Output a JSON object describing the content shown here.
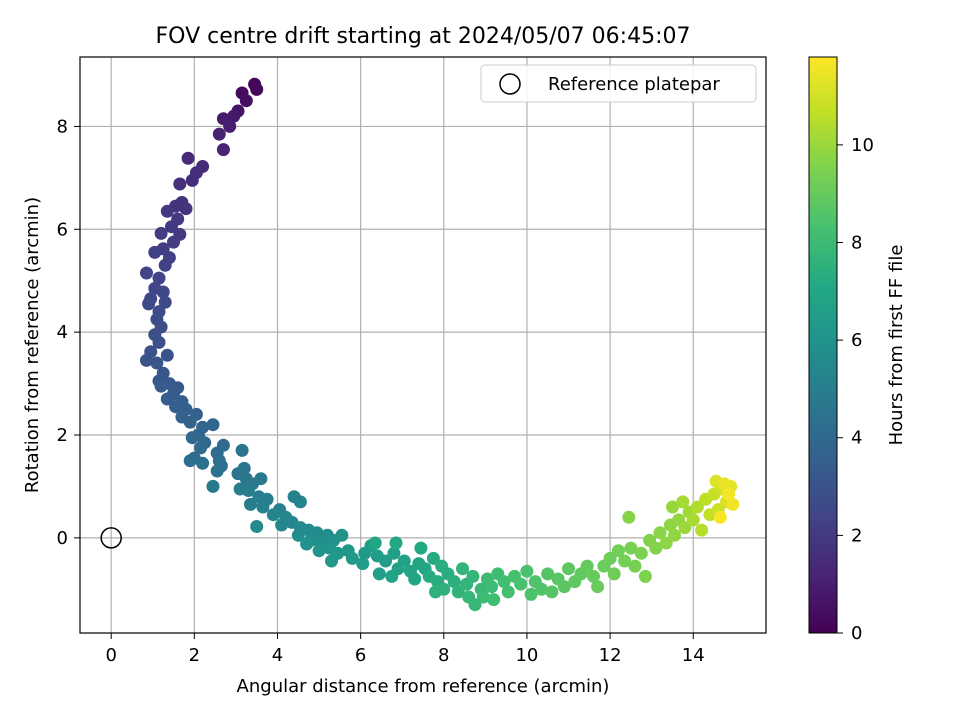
{
  "chart_data": {
    "type": "scatter",
    "title": "FOV centre drift starting at 2024/05/07 06:45:07",
    "xlabel": "Angular distance from reference (arcmin)",
    "ylabel": "Rotation from reference (arcmin)",
    "xlim": [
      -0.75,
      15.75
    ],
    "ylim": [
      -1.85,
      9.35
    ],
    "xticks": [
      0,
      2,
      4,
      6,
      8,
      10,
      12,
      14
    ],
    "yticks": [
      0,
      2,
      4,
      6,
      8
    ],
    "grid": true,
    "legend": {
      "position": "top-right",
      "entries": [
        "Reference platepar"
      ]
    },
    "reference_point": {
      "x": 0,
      "y": 0,
      "marker": "open-circle",
      "label": "Reference platepar"
    },
    "colorbar": {
      "label": "Hours from first FF file",
      "colormap": "viridis",
      "range": [
        0,
        11.8
      ],
      "ticks": [
        0,
        2,
        4,
        6,
        8,
        10
      ]
    },
    "series": [
      {
        "name": "FOV centre drift",
        "points": [
          {
            "x": 3.45,
            "y": 8.82,
            "c": 0.1
          },
          {
            "x": 3.5,
            "y": 8.72,
            "c": 0.2
          },
          {
            "x": 3.15,
            "y": 8.65,
            "c": 0.35
          },
          {
            "x": 3.25,
            "y": 8.5,
            "c": 0.5
          },
          {
            "x": 3.05,
            "y": 8.3,
            "c": 0.65
          },
          {
            "x": 2.95,
            "y": 8.2,
            "c": 0.8
          },
          {
            "x": 2.7,
            "y": 8.15,
            "c": 0.9
          },
          {
            "x": 2.85,
            "y": 8.0,
            "c": 1.0
          },
          {
            "x": 2.6,
            "y": 7.85,
            "c": 1.1
          },
          {
            "x": 2.7,
            "y": 7.55,
            "c": 1.2
          },
          {
            "x": 1.85,
            "y": 7.38,
            "c": 1.35
          },
          {
            "x": 2.2,
            "y": 7.22,
            "c": 1.45
          },
          {
            "x": 2.05,
            "y": 7.1,
            "c": 1.5
          },
          {
            "x": 1.95,
            "y": 6.95,
            "c": 1.55
          },
          {
            "x": 1.65,
            "y": 6.88,
            "c": 1.6
          },
          {
            "x": 1.7,
            "y": 6.52,
            "c": 1.7
          },
          {
            "x": 1.55,
            "y": 6.45,
            "c": 1.75
          },
          {
            "x": 1.8,
            "y": 6.4,
            "c": 1.8
          },
          {
            "x": 1.35,
            "y": 6.35,
            "c": 1.85
          },
          {
            "x": 1.6,
            "y": 6.2,
            "c": 1.9
          },
          {
            "x": 1.45,
            "y": 6.05,
            "c": 1.95
          },
          {
            "x": 1.65,
            "y": 5.9,
            "c": 2.0
          },
          {
            "x": 1.2,
            "y": 5.92,
            "c": 2.05
          },
          {
            "x": 1.5,
            "y": 5.75,
            "c": 2.1
          },
          {
            "x": 1.25,
            "y": 5.62,
            "c": 2.15
          },
          {
            "x": 1.05,
            "y": 5.55,
            "c": 2.2
          },
          {
            "x": 1.4,
            "y": 5.45,
            "c": 2.25
          },
          {
            "x": 1.3,
            "y": 5.3,
            "c": 2.3
          },
          {
            "x": 0.85,
            "y": 5.15,
            "c": 2.35
          },
          {
            "x": 1.15,
            "y": 5.05,
            "c": 2.4
          },
          {
            "x": 1.05,
            "y": 4.85,
            "c": 2.45
          },
          {
            "x": 1.25,
            "y": 4.78,
            "c": 2.5
          },
          {
            "x": 0.95,
            "y": 4.65,
            "c": 2.55
          },
          {
            "x": 1.3,
            "y": 4.58,
            "c": 2.6
          },
          {
            "x": 0.9,
            "y": 4.55,
            "c": 2.65
          },
          {
            "x": 1.15,
            "y": 4.4,
            "c": 2.7
          },
          {
            "x": 1.1,
            "y": 4.25,
            "c": 2.75
          },
          {
            "x": 1.2,
            "y": 4.1,
            "c": 2.8
          },
          {
            "x": 1.05,
            "y": 3.95,
            "c": 2.85
          },
          {
            "x": 1.15,
            "y": 3.8,
            "c": 2.9
          },
          {
            "x": 0.95,
            "y": 3.62,
            "c": 2.95
          },
          {
            "x": 1.35,
            "y": 3.55,
            "c": 3.0
          },
          {
            "x": 0.85,
            "y": 3.45,
            "c": 3.05
          },
          {
            "x": 1.1,
            "y": 3.4,
            "c": 3.1
          },
          {
            "x": 1.25,
            "y": 3.2,
            "c": 3.15
          },
          {
            "x": 1.15,
            "y": 3.05,
            "c": 3.2
          },
          {
            "x": 1.4,
            "y": 3.0,
            "c": 3.25
          },
          {
            "x": 1.6,
            "y": 2.92,
            "c": 3.3
          },
          {
            "x": 1.2,
            "y": 2.95,
            "c": 3.35
          },
          {
            "x": 1.5,
            "y": 2.8,
            "c": 3.4
          },
          {
            "x": 1.35,
            "y": 2.7,
            "c": 3.45
          },
          {
            "x": 1.7,
            "y": 2.65,
            "c": 3.5
          },
          {
            "x": 1.55,
            "y": 2.55,
            "c": 3.55
          },
          {
            "x": 1.8,
            "y": 2.5,
            "c": 3.6
          },
          {
            "x": 2.05,
            "y": 2.4,
            "c": 3.65
          },
          {
            "x": 1.7,
            "y": 2.35,
            "c": 3.7
          },
          {
            "x": 1.9,
            "y": 2.25,
            "c": 3.75
          },
          {
            "x": 2.2,
            "y": 2.15,
            "c": 3.8
          },
          {
            "x": 2.45,
            "y": 2.2,
            "c": 3.85
          },
          {
            "x": 2.1,
            "y": 2.0,
            "c": 3.9
          },
          {
            "x": 1.95,
            "y": 1.95,
            "c": 3.95
          },
          {
            "x": 2.25,
            "y": 1.85,
            "c": 4.0
          },
          {
            "x": 2.15,
            "y": 1.75,
            "c": 4.05
          },
          {
            "x": 2.7,
            "y": 1.8,
            "c": 4.1
          },
          {
            "x": 2.55,
            "y": 1.65,
            "c": 4.15
          },
          {
            "x": 2.0,
            "y": 1.55,
            "c": 4.2
          },
          {
            "x": 1.9,
            "y": 1.5,
            "c": 4.25
          },
          {
            "x": 2.6,
            "y": 1.5,
            "c": 4.3
          },
          {
            "x": 2.2,
            "y": 1.45,
            "c": 4.35
          },
          {
            "x": 2.65,
            "y": 1.4,
            "c": 4.4
          },
          {
            "x": 2.55,
            "y": 1.3,
            "c": 4.45
          },
          {
            "x": 3.15,
            "y": 1.7,
            "c": 4.5
          },
          {
            "x": 3.2,
            "y": 1.35,
            "c": 4.55
          },
          {
            "x": 3.05,
            "y": 1.25,
            "c": 4.6
          },
          {
            "x": 3.25,
            "y": 1.15,
            "c": 4.65
          },
          {
            "x": 3.6,
            "y": 1.15,
            "c": 4.7
          },
          {
            "x": 3.4,
            "y": 1.05,
            "c": 4.75
          },
          {
            "x": 2.45,
            "y": 1.0,
            "c": 4.8
          },
          {
            "x": 3.1,
            "y": 0.95,
            "c": 4.85
          },
          {
            "x": 3.3,
            "y": 0.92,
            "c": 4.9
          },
          {
            "x": 3.55,
            "y": 0.8,
            "c": 4.95
          },
          {
            "x": 3.75,
            "y": 0.75,
            "c": 5.0
          },
          {
            "x": 3.35,
            "y": 0.65,
            "c": 5.05
          },
          {
            "x": 3.65,
            "y": 0.6,
            "c": 5.1
          },
          {
            "x": 4.05,
            "y": 0.55,
            "c": 5.15
          },
          {
            "x": 4.4,
            "y": 0.8,
            "c": 5.2
          },
          {
            "x": 4.55,
            "y": 0.7,
            "c": 5.25
          },
          {
            "x": 3.9,
            "y": 0.45,
            "c": 5.3
          },
          {
            "x": 4.2,
            "y": 0.4,
            "c": 5.35
          },
          {
            "x": 4.35,
            "y": 0.3,
            "c": 5.4
          },
          {
            "x": 4.1,
            "y": 0.25,
            "c": 5.45
          },
          {
            "x": 3.5,
            "y": 0.22,
            "c": 5.5
          },
          {
            "x": 4.55,
            "y": 0.2,
            "c": 5.55
          },
          {
            "x": 4.75,
            "y": 0.15,
            "c": 5.6
          },
          {
            "x": 4.95,
            "y": 0.1,
            "c": 5.65
          },
          {
            "x": 4.5,
            "y": 0.05,
            "c": 5.7
          },
          {
            "x": 5.2,
            "y": 0.05,
            "c": 5.75
          },
          {
            "x": 4.8,
            "y": -0.05,
            "c": 5.8
          },
          {
            "x": 5.05,
            "y": -0.1,
            "c": 5.85
          },
          {
            "x": 5.35,
            "y": -0.05,
            "c": 5.9
          },
          {
            "x": 4.7,
            "y": -0.12,
            "c": 5.95
          },
          {
            "x": 5.55,
            "y": 0.05,
            "c": 6.0
          },
          {
            "x": 5.25,
            "y": -0.2,
            "c": 6.05
          },
          {
            "x": 5.0,
            "y": -0.25,
            "c": 6.1
          },
          {
            "x": 5.45,
            "y": -0.3,
            "c": 6.15
          },
          {
            "x": 5.7,
            "y": -0.25,
            "c": 6.2
          },
          {
            "x": 5.3,
            "y": -0.45,
            "c": 6.25
          },
          {
            "x": 5.8,
            "y": -0.4,
            "c": 6.3
          },
          {
            "x": 6.1,
            "y": -0.3,
            "c": 6.35
          },
          {
            "x": 6.25,
            "y": -0.15,
            "c": 6.4
          },
          {
            "x": 6.05,
            "y": -0.5,
            "c": 6.45
          },
          {
            "x": 6.4,
            "y": -0.35,
            "c": 6.5
          },
          {
            "x": 6.6,
            "y": -0.45,
            "c": 6.55
          },
          {
            "x": 6.8,
            "y": -0.3,
            "c": 6.6
          },
          {
            "x": 6.45,
            "y": -0.7,
            "c": 6.65
          },
          {
            "x": 6.9,
            "y": -0.6,
            "c": 6.7
          },
          {
            "x": 7.05,
            "y": -0.45,
            "c": 6.75
          },
          {
            "x": 6.75,
            "y": -0.75,
            "c": 6.8
          },
          {
            "x": 7.2,
            "y": -0.65,
            "c": 6.85
          },
          {
            "x": 7.4,
            "y": -0.5,
            "c": 6.9
          },
          {
            "x": 7.3,
            "y": -0.8,
            "c": 6.95
          },
          {
            "x": 7.55,
            "y": -0.6,
            "c": 7.0
          },
          {
            "x": 6.35,
            "y": -0.1,
            "c": 7.05
          },
          {
            "x": 6.85,
            "y": -0.1,
            "c": 7.1
          },
          {
            "x": 7.45,
            "y": -0.2,
            "c": 7.15
          },
          {
            "x": 7.75,
            "y": -0.4,
            "c": 7.2
          },
          {
            "x": 7.65,
            "y": -0.75,
            "c": 7.25
          },
          {
            "x": 7.85,
            "y": -0.85,
            "c": 7.3
          },
          {
            "x": 7.95,
            "y": -0.55,
            "c": 7.35
          },
          {
            "x": 8.1,
            "y": -0.7,
            "c": 7.4
          },
          {
            "x": 8.25,
            "y": -0.85,
            "c": 7.45
          },
          {
            "x": 8.0,
            "y": -1.0,
            "c": 7.5
          },
          {
            "x": 7.8,
            "y": -1.05,
            "c": 7.55
          },
          {
            "x": 8.35,
            "y": -1.05,
            "c": 7.6
          },
          {
            "x": 8.45,
            "y": -0.6,
            "c": 7.65
          },
          {
            "x": 8.55,
            "y": -0.9,
            "c": 7.7
          },
          {
            "x": 8.7,
            "y": -0.75,
            "c": 7.75
          },
          {
            "x": 8.6,
            "y": -1.15,
            "c": 7.8
          },
          {
            "x": 8.75,
            "y": -1.3,
            "c": 7.85
          },
          {
            "x": 8.9,
            "y": -1.0,
            "c": 7.9
          },
          {
            "x": 9.05,
            "y": -0.8,
            "c": 7.95
          },
          {
            "x": 8.95,
            "y": -1.15,
            "c": 8.0
          },
          {
            "x": 9.15,
            "y": -0.95,
            "c": 8.05
          },
          {
            "x": 9.3,
            "y": -0.7,
            "c": 8.1
          },
          {
            "x": 9.2,
            "y": -1.2,
            "c": 8.15
          },
          {
            "x": 9.45,
            "y": -0.85,
            "c": 8.2
          },
          {
            "x": 9.55,
            "y": -1.05,
            "c": 8.25
          },
          {
            "x": 9.7,
            "y": -0.75,
            "c": 8.3
          },
          {
            "x": 9.85,
            "y": -0.9,
            "c": 8.35
          },
          {
            "x": 10.0,
            "y": -0.65,
            "c": 8.4
          },
          {
            "x": 10.1,
            "y": -1.1,
            "c": 8.45
          },
          {
            "x": 10.2,
            "y": -0.85,
            "c": 8.5
          },
          {
            "x": 10.35,
            "y": -1.0,
            "c": 8.55
          },
          {
            "x": 10.5,
            "y": -0.7,
            "c": 8.6
          },
          {
            "x": 10.6,
            "y": -1.05,
            "c": 8.65
          },
          {
            "x": 10.75,
            "y": -0.8,
            "c": 8.7
          },
          {
            "x": 10.9,
            "y": -0.95,
            "c": 8.75
          },
          {
            "x": 11.0,
            "y": -0.6,
            "c": 8.8
          },
          {
            "x": 11.15,
            "y": -0.85,
            "c": 8.85
          },
          {
            "x": 11.3,
            "y": -0.7,
            "c": 8.9
          },
          {
            "x": 11.45,
            "y": -0.55,
            "c": 8.95
          },
          {
            "x": 11.6,
            "y": -0.75,
            "c": 9.0
          },
          {
            "x": 11.7,
            "y": -0.95,
            "c": 9.05
          },
          {
            "x": 11.85,
            "y": -0.55,
            "c": 9.1
          },
          {
            "x": 12.0,
            "y": -0.4,
            "c": 9.15
          },
          {
            "x": 12.1,
            "y": -0.7,
            "c": 9.2
          },
          {
            "x": 12.2,
            "y": -0.25,
            "c": 9.25
          },
          {
            "x": 12.35,
            "y": -0.45,
            "c": 9.3
          },
          {
            "x": 12.5,
            "y": -0.2,
            "c": 9.35
          },
          {
            "x": 12.6,
            "y": -0.55,
            "c": 9.4
          },
          {
            "x": 12.75,
            "y": -0.3,
            "c": 9.45
          },
          {
            "x": 12.85,
            "y": -0.75,
            "c": 9.5
          },
          {
            "x": 12.95,
            "y": -0.05,
            "c": 9.55
          },
          {
            "x": 13.1,
            "y": -0.2,
            "c": 9.6
          },
          {
            "x": 12.45,
            "y": 0.4,
            "c": 9.65
          },
          {
            "x": 13.2,
            "y": 0.1,
            "c": 9.7
          },
          {
            "x": 13.35,
            "y": -0.1,
            "c": 9.75
          },
          {
            "x": 13.45,
            "y": 0.25,
            "c": 9.8
          },
          {
            "x": 13.55,
            "y": 0.05,
            "c": 9.85
          },
          {
            "x": 13.65,
            "y": 0.35,
            "c": 9.9
          },
          {
            "x": 13.5,
            "y": 0.6,
            "c": 9.95
          },
          {
            "x": 13.8,
            "y": 0.2,
            "c": 10.0
          },
          {
            "x": 13.9,
            "y": 0.5,
            "c": 10.1
          },
          {
            "x": 13.75,
            "y": 0.7,
            "c": 10.2
          },
          {
            "x": 14.0,
            "y": 0.35,
            "c": 10.3
          },
          {
            "x": 14.1,
            "y": 0.6,
            "c": 10.4
          },
          {
            "x": 14.2,
            "y": 0.15,
            "c": 10.5
          },
          {
            "x": 14.3,
            "y": 0.75,
            "c": 10.6
          },
          {
            "x": 14.4,
            "y": 0.45,
            "c": 10.7
          },
          {
            "x": 14.5,
            "y": 0.85,
            "c": 10.8
          },
          {
            "x": 14.6,
            "y": 0.55,
            "c": 10.9
          },
          {
            "x": 14.7,
            "y": 0.95,
            "c": 11.0
          },
          {
            "x": 14.8,
            "y": 0.7,
            "c": 11.1
          },
          {
            "x": 14.55,
            "y": 1.1,
            "c": 11.2
          },
          {
            "x": 14.9,
            "y": 1.0,
            "c": 11.3
          },
          {
            "x": 14.75,
            "y": 1.05,
            "c": 11.4
          },
          {
            "x": 14.95,
            "y": 0.65,
            "c": 11.5
          },
          {
            "x": 14.85,
            "y": 0.85,
            "c": 11.6
          },
          {
            "x": 14.65,
            "y": 0.4,
            "c": 11.7
          }
        ]
      }
    ]
  }
}
